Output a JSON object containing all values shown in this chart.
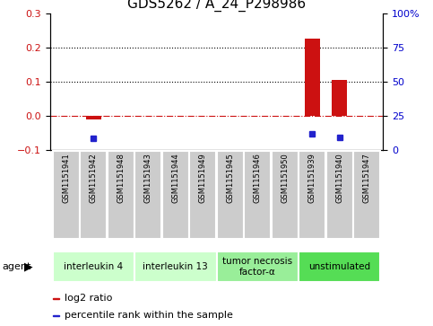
{
  "title": "GDS5262 / A_24_P298986",
  "samples": [
    "GSM1151941",
    "GSM1151942",
    "GSM1151948",
    "GSM1151943",
    "GSM1151944",
    "GSM1151949",
    "GSM1151945",
    "GSM1151946",
    "GSM1151950",
    "GSM1151939",
    "GSM1151940",
    "GSM1151947"
  ],
  "log2_ratio": [
    0.0,
    -0.01,
    0.0,
    0.0,
    0.0,
    0.0,
    0.0,
    0.0,
    0.0,
    0.225,
    0.105,
    0.0
  ],
  "percentile": [
    0.0,
    0.085,
    0.0,
    0.0,
    0.0,
    0.0,
    0.0,
    0.0,
    0.0,
    0.118,
    0.092,
    0.0
  ],
  "agents": [
    {
      "label": "interleukin 4",
      "start": 0,
      "end": 2,
      "color": "#ccffcc"
    },
    {
      "label": "interleukin 13",
      "start": 3,
      "end": 5,
      "color": "#ccffcc"
    },
    {
      "label": "tumor necrosis\nfactor-α",
      "start": 6,
      "end": 8,
      "color": "#99ee99"
    },
    {
      "label": "unstimulated",
      "start": 9,
      "end": 11,
      "color": "#55dd55"
    }
  ],
  "ylim_left": [
    -0.1,
    0.3
  ],
  "ylim_right": [
    0,
    100
  ],
  "yticks_left": [
    -0.1,
    0.0,
    0.1,
    0.2,
    0.3
  ],
  "yticks_right": [
    0,
    25,
    50,
    75,
    100
  ],
  "bar_color_log2": "#cc1111",
  "bar_color_pct": "#2222cc",
  "bar_width": 0.55,
  "hline_y": 0.0,
  "dotted_lines": [
    0.1,
    0.2
  ],
  "background_color": "#ffffff",
  "agent_label_fontsize": 7.5,
  "sample_fontsize": 6.0,
  "title_fontsize": 11,
  "sample_box_color": "#cccccc",
  "legend_fontsize": 8
}
